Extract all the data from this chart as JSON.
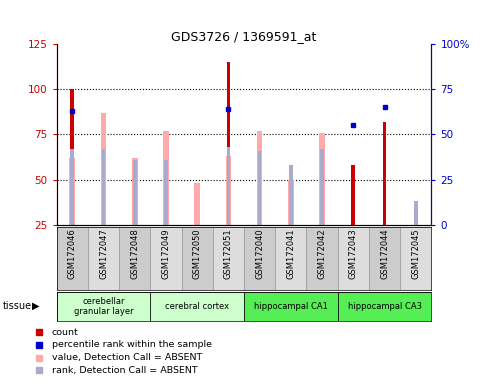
{
  "title": "GDS3726 / 1369591_at",
  "samples": [
    "GSM172046",
    "GSM172047",
    "GSM172048",
    "GSM172049",
    "GSM172050",
    "GSM172051",
    "GSM172040",
    "GSM172041",
    "GSM172042",
    "GSM172043",
    "GSM172044",
    "GSM172045"
  ],
  "count_values": [
    100,
    0,
    0,
    0,
    0,
    115,
    0,
    0,
    0,
    58,
    82,
    0
  ],
  "absent_value_bars": [
    62,
    87,
    62,
    77,
    48,
    63,
    77,
    50,
    76,
    0,
    0,
    25
  ],
  "percentile_rank": [
    63,
    0,
    0,
    0,
    0,
    64,
    0,
    0,
    0,
    55,
    65,
    0
  ],
  "absent_rank_bars": [
    42,
    42,
    36,
    36,
    0,
    43,
    41,
    33,
    42,
    0,
    0,
    13
  ],
  "ylim_left": [
    25,
    125
  ],
  "ylim_right": [
    0,
    100
  ],
  "yticks_left": [
    25,
    50,
    75,
    100,
    125
  ],
  "yticks_right": [
    0,
    25,
    50,
    75,
    100
  ],
  "tissue_groups": [
    {
      "label": "cerebellar\ngranular layer",
      "start": 0,
      "end": 3,
      "color": "#ccffcc"
    },
    {
      "label": "cerebral cortex",
      "start": 3,
      "end": 6,
      "color": "#ccffcc"
    },
    {
      "label": "hippocampal CA1",
      "start": 6,
      "end": 9,
      "color": "#55ee55"
    },
    {
      "label": "hippocampal CA3",
      "start": 9,
      "end": 12,
      "color": "#55ee55"
    }
  ],
  "count_color": "#cc0000",
  "absent_value_color": "#ffaaaa",
  "percentile_color": "#0000cc",
  "absent_rank_color": "#aaaacc",
  "ylabel_left_color": "#cc0000",
  "ylabel_right_color": "#0000cc",
  "bar_width": 0.22,
  "absent_bar_width": 0.18
}
